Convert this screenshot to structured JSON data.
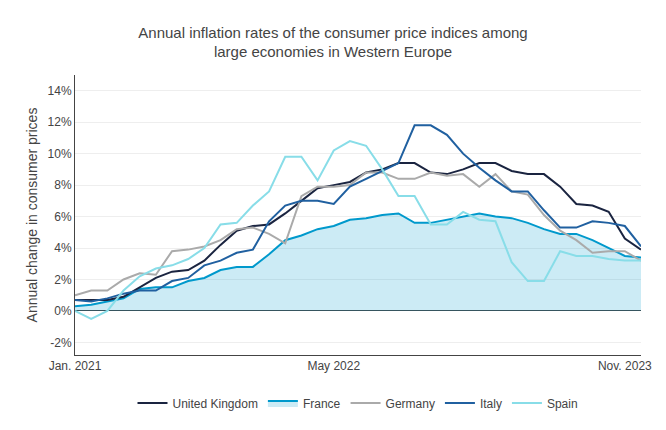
{
  "chart_data": {
    "type": "line",
    "title": "Annual inflation rates of the consumer price indices among\nlarge economies in Western Europe",
    "y_label": "Annual change in consumer prices",
    "categories": [
      "Jan. 2021",
      null,
      null,
      null,
      null,
      null,
      null,
      null,
      null,
      null,
      null,
      null,
      null,
      null,
      null,
      null,
      "May 2022",
      null,
      null,
      null,
      null,
      null,
      null,
      null,
      null,
      null,
      null,
      null,
      null,
      null,
      null,
      null,
      null,
      null,
      "Nov. 2023",
      null
    ],
    "series": [
      {
        "name": "United Kingdom",
        "type": "line",
        "color": "#1a2440",
        "values": [
          0.7,
          0.7,
          0.7,
          0.9,
          1.5,
          2.1,
          2.5,
          2.6,
          3.2,
          4.2,
          5.1,
          5.4,
          5.5,
          6.2,
          7.0,
          7.8,
          8.0,
          8.2,
          8.8,
          9.0,
          9.4,
          9.4,
          8.8,
          8.7,
          9.0,
          9.4,
          9.4,
          8.9,
          8.7,
          8.7,
          7.9,
          6.8,
          6.7,
          6.3,
          4.6,
          3.9
        ]
      },
      {
        "name": "France",
        "type": "area",
        "color": "#0099cc",
        "values": [
          0.3,
          0.4,
          0.6,
          0.8,
          1.4,
          1.5,
          1.5,
          1.9,
          2.1,
          2.6,
          2.8,
          2.8,
          3.6,
          4.5,
          4.8,
          5.2,
          5.4,
          5.8,
          5.9,
          6.1,
          6.2,
          5.6,
          5.6,
          5.8,
          6.0,
          6.2,
          6.0,
          5.9,
          5.6,
          5.2,
          4.9,
          4.9,
          4.5,
          4.0,
          3.5,
          3.4
        ]
      },
      {
        "name": "Germany",
        "type": "line",
        "color": "#aaaaaa",
        "values": [
          1.0,
          1.3,
          1.3,
          2.0,
          2.4,
          2.3,
          3.8,
          3.9,
          4.1,
          4.5,
          5.2,
          5.3,
          4.9,
          4.3,
          7.3,
          7.9,
          7.9,
          8.0,
          8.8,
          8.8,
          8.4,
          8.4,
          8.8,
          8.6,
          8.7,
          7.9,
          8.7,
          7.6,
          7.4,
          6.1,
          5.1,
          4.5,
          3.7,
          3.8,
          3.8,
          3.2
        ]
      },
      {
        "name": "Italy",
        "type": "line",
        "color": "#2060a0",
        "values": [
          0.7,
          0.6,
          0.8,
          1.1,
          1.3,
          1.3,
          1.9,
          2.1,
          2.9,
          3.2,
          3.7,
          3.9,
          5.7,
          6.7,
          7.0,
          7.0,
          6.8,
          7.9,
          8.4,
          8.9,
          9.4,
          11.8,
          11.8,
          11.2,
          10.0,
          9.1,
          8.3,
          7.6,
          7.6,
          6.4,
          5.3,
          5.3,
          5.7,
          5.6,
          5.4,
          4.1
        ]
      },
      {
        "name": "Spain",
        "type": "line",
        "color": "#88dde8",
        "values": [
          0.0,
          -0.5,
          0.0,
          1.3,
          2.2,
          2.7,
          2.9,
          3.3,
          4.0,
          5.5,
          5.6,
          6.7,
          7.6,
          9.8,
          9.8,
          8.3,
          10.2,
          10.8,
          10.5,
          9.0,
          7.3,
          7.3,
          5.5,
          5.5,
          6.3,
          5.8,
          5.7,
          3.1,
          1.9,
          1.9,
          3.8,
          3.5,
          3.5,
          3.3,
          3.2,
          3.2
        ]
      }
    ],
    "ylim": [
      -2.8,
      15.0
    ],
    "yticks": [
      {
        "value": -2,
        "label": "-2%"
      },
      {
        "value": 0,
        "label": "0%"
      },
      {
        "value": 2,
        "label": "2%"
      },
      {
        "value": 4,
        "label": "4%"
      },
      {
        "value": 6,
        "label": "6%"
      },
      {
        "value": 8,
        "label": "8%"
      },
      {
        "value": 10,
        "label": "10%"
      },
      {
        "value": 12,
        "label": "12%"
      },
      {
        "value": 14,
        "label": "14%"
      }
    ],
    "grid": true,
    "legend": "bottom"
  }
}
